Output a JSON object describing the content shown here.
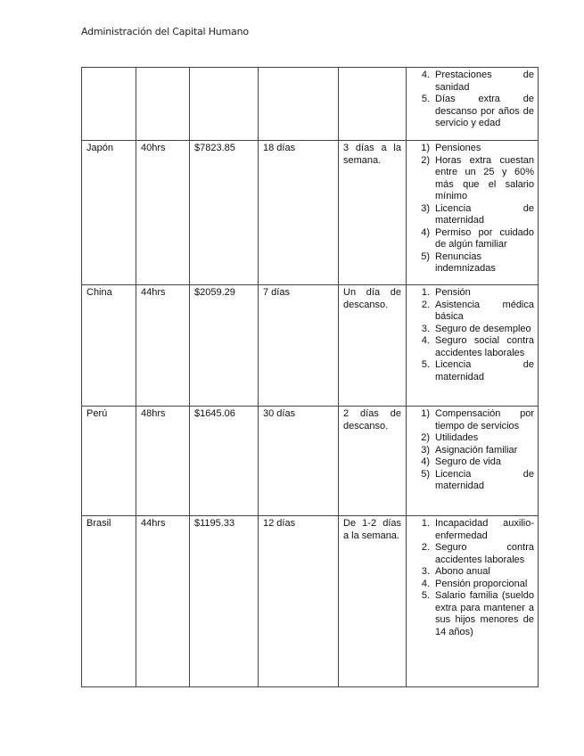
{
  "header": {
    "title": "Administración del Capital Humano"
  },
  "rows": [
    {
      "country": "",
      "hours": "",
      "salary": "",
      "vacation": "",
      "rest": "",
      "benefits": [
        {
          "n": "4.",
          "t": "Prestaciones de sanidad"
        },
        {
          "n": "5.",
          "t": "Días extra de descanso por años de servicio y edad"
        }
      ]
    },
    {
      "country": "Japón",
      "hours": "40hrs",
      "salary": "$7823.85",
      "vacation": "18 días",
      "rest": "3 días a la semana.",
      "benefits": [
        {
          "n": "1)",
          "t": "Pensiones"
        },
        {
          "n": "2)",
          "t": "Horas extra cuestan entre un 25 y 60% más que el salario mínimo"
        },
        {
          "n": "3)",
          "t": "Licencia de maternidad"
        },
        {
          "n": "4)",
          "t": "Permiso por cuidado de algún familiar"
        },
        {
          "n": "5)",
          "t": "Renuncias indemnizadas"
        }
      ]
    },
    {
      "country": "China",
      "hours": "44hrs",
      "salary": "$2059.29",
      "vacation": "7 días",
      "rest": "Un día de descanso.",
      "benefits": [
        {
          "n": "1.",
          "t": "Pensión"
        },
        {
          "n": "2.",
          "t": "Asistencia médica básica"
        },
        {
          "n": "3.",
          "t": "Seguro de desempleo"
        },
        {
          "n": "4.",
          "t": "Seguro social contra accidentes laborales"
        },
        {
          "n": "5.",
          "t": "Licencia de maternidad"
        }
      ]
    },
    {
      "country": "Perú",
      "hours": "48hrs",
      "salary": "$1645.06",
      "vacation": "30 días",
      "rest": "2 días de descanso.",
      "benefits": [
        {
          "n": "1)",
          "t": "Compensación por tiempo de servicios"
        },
        {
          "n": "2)",
          "t": "Utilidades"
        },
        {
          "n": "3)",
          "t": "Asignación familiar"
        },
        {
          "n": "4)",
          "t": "Seguro de vida"
        },
        {
          "n": "5)",
          "t": "Licencia de maternidad"
        }
      ]
    },
    {
      "country": "Brasil",
      "hours": "44hrs",
      "salary": "$1195.33",
      "vacation": "12 días",
      "rest": "De 1-2 días a la semana.",
      "benefits": [
        {
          "n": "1.",
          "t": "Incapacidad auxilio-enfermedad"
        },
        {
          "n": "2.",
          "t": "Seguro contra accidentes laborales"
        },
        {
          "n": "3.",
          "t": "Abono anual"
        },
        {
          "n": "4.",
          "t": "Pensión proporcional"
        },
        {
          "n": "5.",
          "t": "Salario familia (sueldo extra para mantener a sus hijos menores de 14 años)"
        }
      ]
    }
  ]
}
